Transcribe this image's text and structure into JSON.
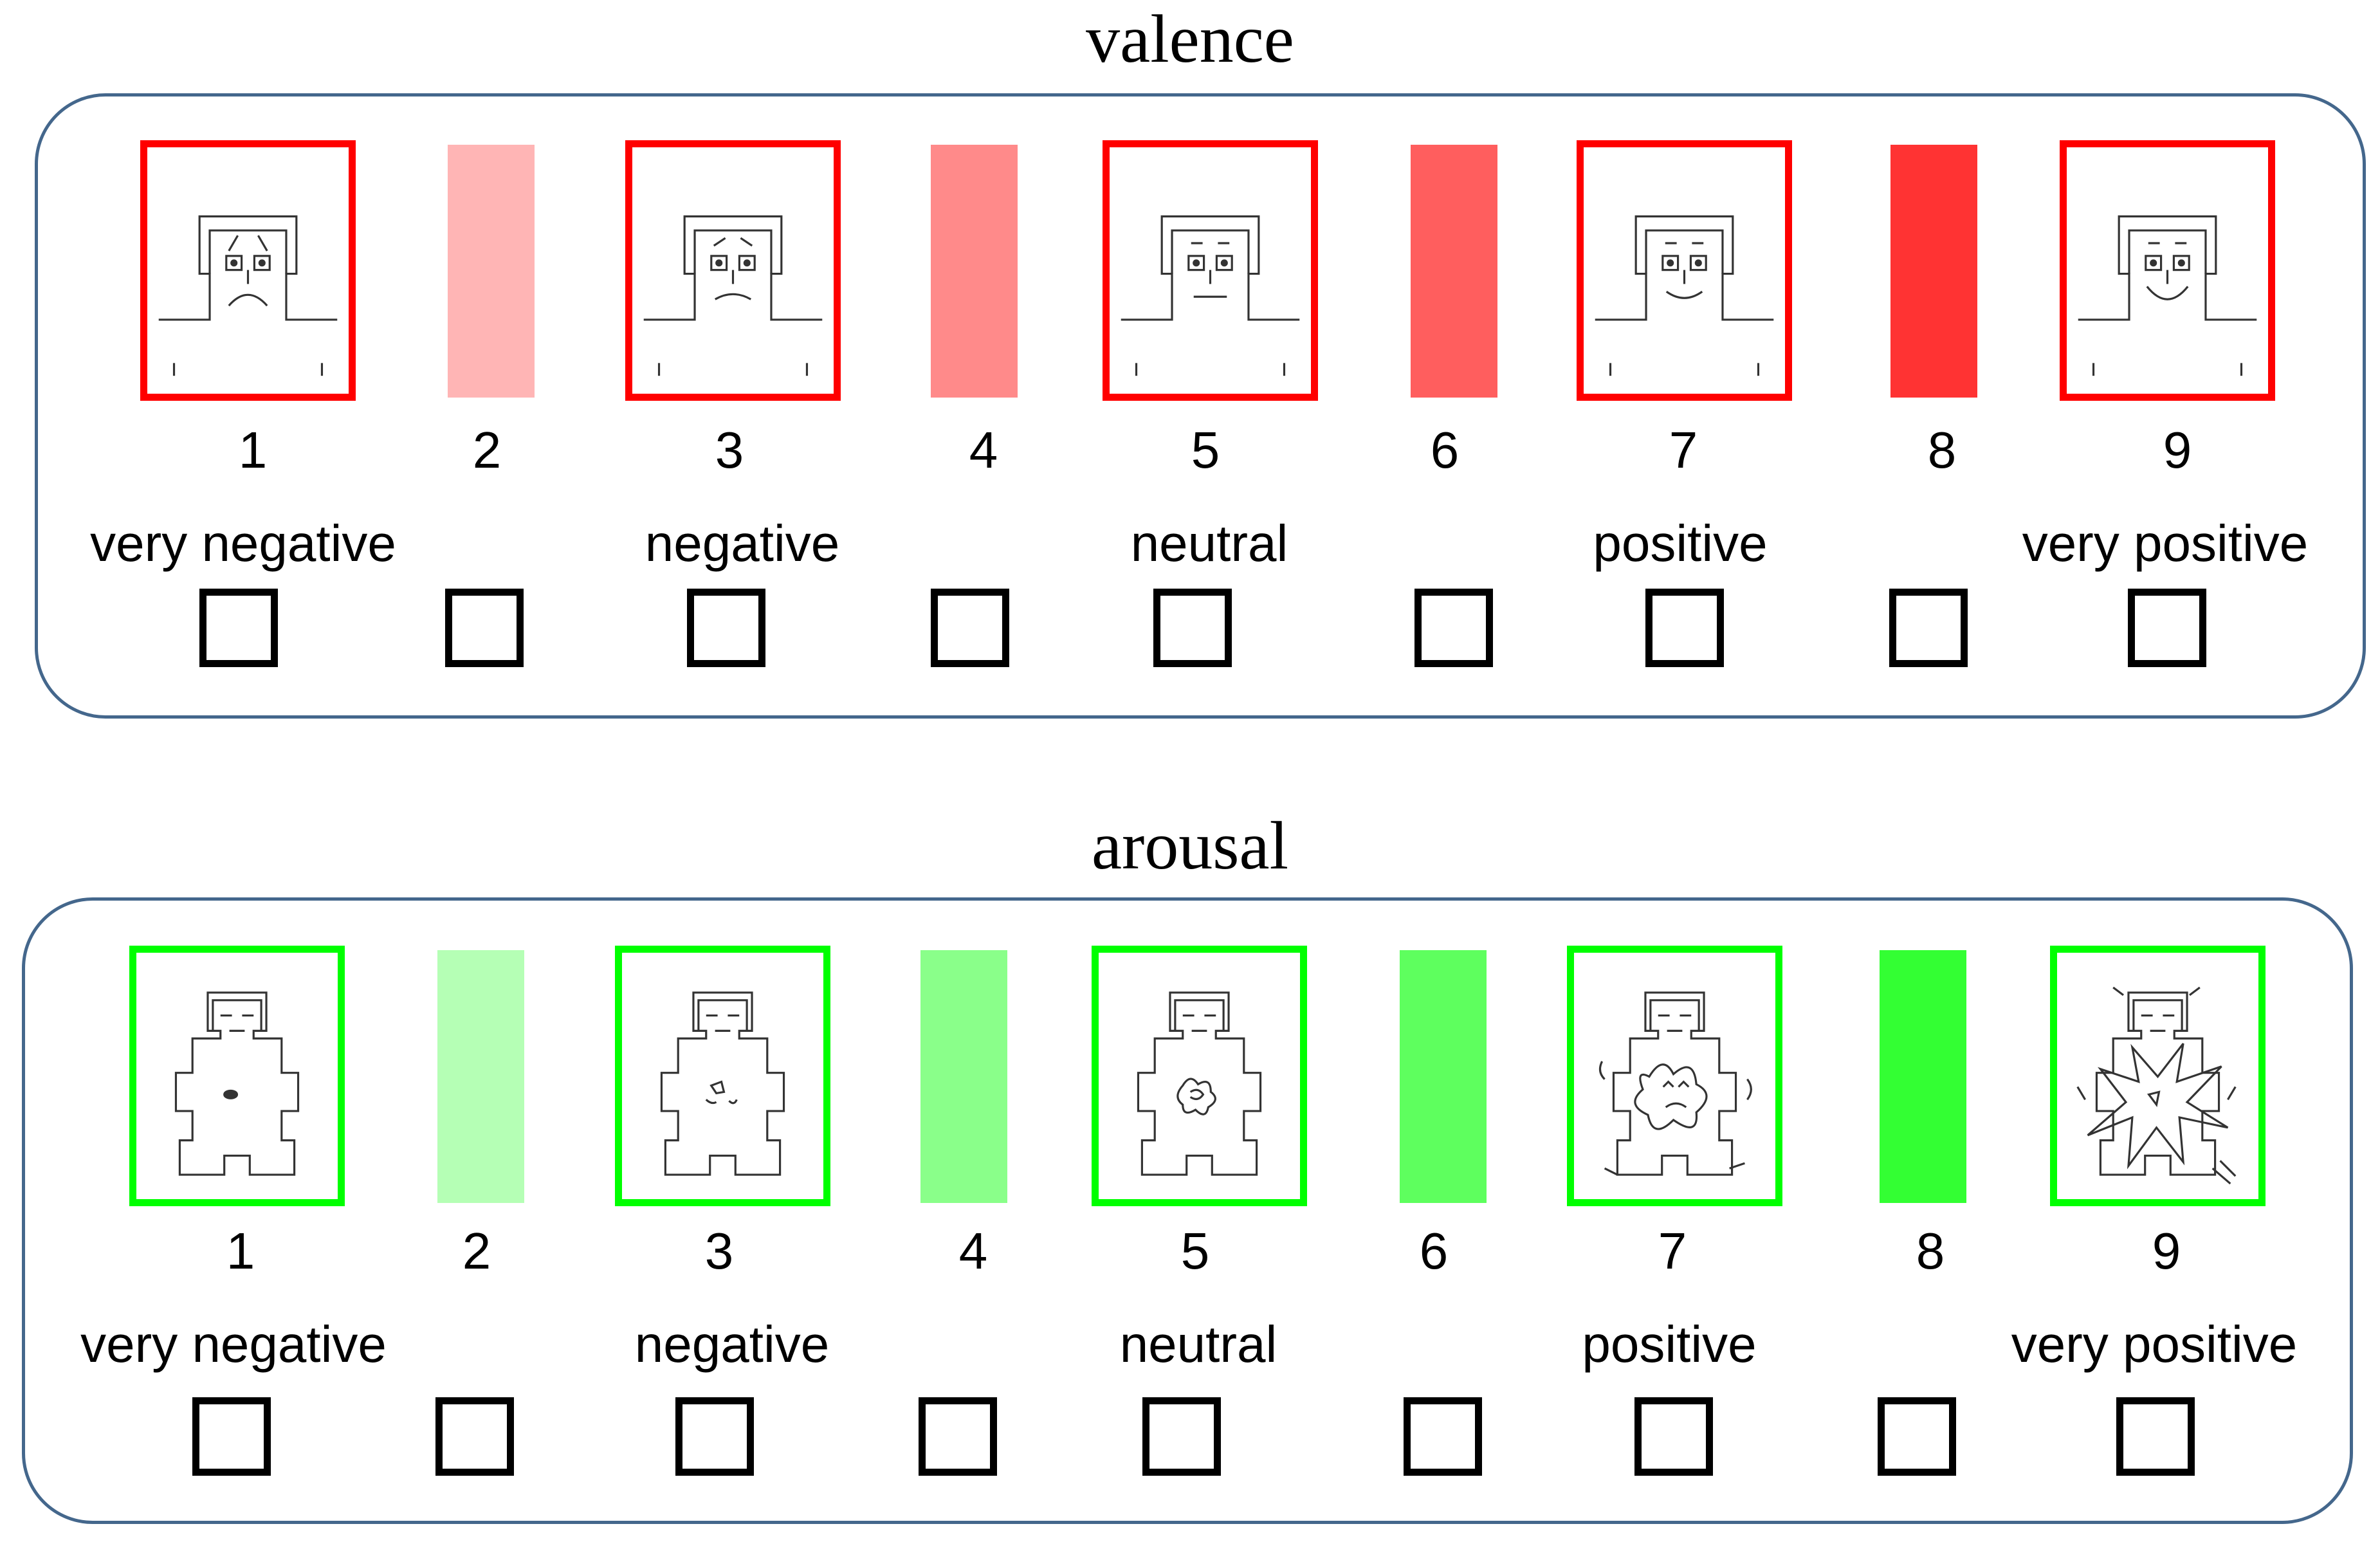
{
  "valence": {
    "title": "valence",
    "accent": "#ff0000",
    "numbers": [
      "1",
      "2",
      "3",
      "4",
      "5",
      "6",
      "7",
      "8",
      "9"
    ],
    "labels": [
      "very negative",
      "negative",
      "neutral",
      "positive",
      "very positive"
    ],
    "figures": [
      "sam-valence-very-unhappy",
      "sam-valence-unhappy",
      "sam-valence-neutral",
      "sam-valence-happy",
      "sam-valence-very-happy"
    ],
    "bar_intensity": [
      0.25,
      0.5,
      0.75,
      1.0
    ]
  },
  "arousal": {
    "title": "arousal",
    "accent": "#00ff00",
    "numbers": [
      "1",
      "2",
      "3",
      "4",
      "5",
      "6",
      "7",
      "8",
      "9"
    ],
    "labels": [
      "very negative",
      "negative",
      "neutral",
      "positive",
      "very positive"
    ],
    "figures": [
      "sam-arousal-calm",
      "sam-arousal-low",
      "sam-arousal-medium",
      "sam-arousal-high",
      "sam-arousal-very-high"
    ],
    "bar_intensity": [
      0.25,
      0.5,
      0.75,
      1.0
    ]
  }
}
